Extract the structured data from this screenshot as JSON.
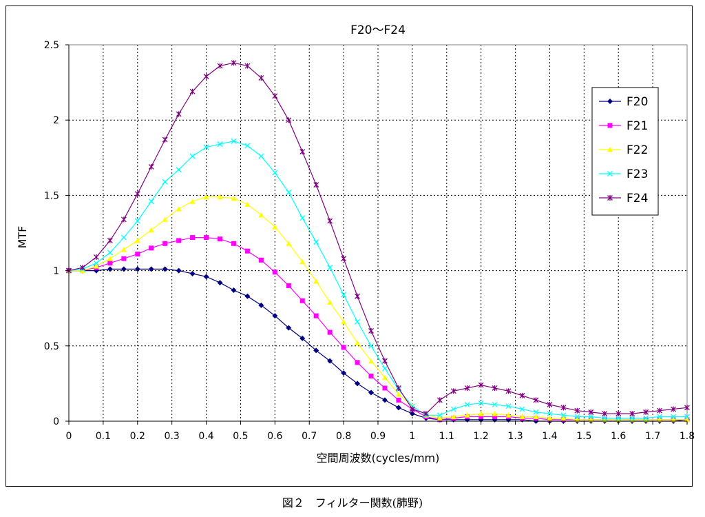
{
  "caption": "図２　フィルター関数(肺野)",
  "chart_data": {
    "type": "line",
    "title": "F20～F24",
    "xlabel": "空間周波数(cycles/mm)",
    "ylabel": "MTF",
    "xlim": [
      0,
      1.8
    ],
    "ylim": [
      0,
      2.5
    ],
    "x_ticks": [
      "0",
      "0.1",
      "0.2",
      "0.3",
      "0.4",
      "0.5",
      "0.6",
      "0.7",
      "0.8",
      "0.9",
      "1",
      "1.1",
      "1.2",
      "1.3",
      "1.4",
      "1.5",
      "1.6",
      "1.7",
      "1.8"
    ],
    "y_ticks": [
      "0",
      "0.5",
      "1",
      "1.5",
      "2",
      "2.5"
    ],
    "grid": true,
    "legend_position": "right",
    "x": [
      0,
      0.04,
      0.08,
      0.12,
      0.16,
      0.2,
      0.24,
      0.28,
      0.32,
      0.36,
      0.4,
      0.44,
      0.48,
      0.52,
      0.56,
      0.6,
      0.64,
      0.68,
      0.72,
      0.76,
      0.8,
      0.84,
      0.88,
      0.92,
      0.96,
      1.0,
      1.04,
      1.08,
      1.12,
      1.16,
      1.2,
      1.24,
      1.28,
      1.32,
      1.36,
      1.4,
      1.44,
      1.48,
      1.52,
      1.56,
      1.6,
      1.64,
      1.68,
      1.72,
      1.76,
      1.8
    ],
    "series": [
      {
        "name": "F20",
        "color": "#000080",
        "marker": "diamond",
        "values": [
          1.0,
          1.0,
          1.0,
          1.01,
          1.01,
          1.01,
          1.01,
          1.01,
          1.0,
          0.98,
          0.96,
          0.92,
          0.87,
          0.83,
          0.77,
          0.7,
          0.62,
          0.55,
          0.47,
          0.4,
          0.32,
          0.25,
          0.19,
          0.14,
          0.09,
          0.05,
          0.02,
          0.01,
          0.01,
          0.01,
          0.01,
          0.01,
          0.01,
          0.01,
          0.0,
          0.0,
          0.0,
          0.0,
          0.0,
          0.0,
          0.0,
          0.0,
          0.0,
          0.0,
          0.0,
          0.01
        ]
      },
      {
        "name": "F21",
        "color": "#ff00ff",
        "marker": "square",
        "values": [
          1.0,
          1.0,
          1.02,
          1.05,
          1.08,
          1.11,
          1.15,
          1.18,
          1.2,
          1.22,
          1.22,
          1.21,
          1.18,
          1.13,
          1.07,
          0.99,
          0.9,
          0.8,
          0.7,
          0.59,
          0.49,
          0.39,
          0.3,
          0.22,
          0.14,
          0.08,
          0.03,
          0.01,
          0.02,
          0.03,
          0.03,
          0.03,
          0.03,
          0.02,
          0.02,
          0.01,
          0.01,
          0.01,
          0.01,
          0.01,
          0.01,
          0.01,
          0.01,
          0.01,
          0.01,
          0.01
        ]
      },
      {
        "name": "F22",
        "color": "#ffff00",
        "marker": "triangle",
        "values": [
          1.0,
          1.0,
          1.03,
          1.08,
          1.14,
          1.2,
          1.27,
          1.34,
          1.41,
          1.46,
          1.49,
          1.49,
          1.48,
          1.44,
          1.37,
          1.29,
          1.18,
          1.06,
          0.93,
          0.79,
          0.66,
          0.52,
          0.4,
          0.29,
          0.18,
          0.1,
          0.04,
          0.02,
          0.03,
          0.04,
          0.05,
          0.05,
          0.04,
          0.03,
          0.03,
          0.02,
          0.02,
          0.01,
          0.01,
          0.01,
          0.01,
          0.01,
          0.01,
          0.01,
          0.01,
          0.01
        ]
      },
      {
        "name": "F23",
        "color": "#00ffff",
        "marker": "x",
        "values": [
          1.0,
          1.01,
          1.05,
          1.12,
          1.22,
          1.33,
          1.46,
          1.59,
          1.67,
          1.76,
          1.82,
          1.84,
          1.86,
          1.83,
          1.76,
          1.65,
          1.52,
          1.35,
          1.19,
          1.02,
          0.84,
          0.66,
          0.5,
          0.35,
          0.21,
          0.1,
          0.04,
          0.04,
          0.08,
          0.11,
          0.12,
          0.11,
          0.1,
          0.08,
          0.06,
          0.05,
          0.04,
          0.03,
          0.03,
          0.02,
          0.02,
          0.02,
          0.02,
          0.03,
          0.03,
          0.03
        ]
      },
      {
        "name": "F24",
        "color": "#800080",
        "marker": "star",
        "values": [
          1.0,
          1.02,
          1.09,
          1.2,
          1.34,
          1.51,
          1.69,
          1.87,
          2.04,
          2.19,
          2.29,
          2.36,
          2.38,
          2.36,
          2.28,
          2.16,
          2.0,
          1.79,
          1.57,
          1.33,
          1.08,
          0.83,
          0.6,
          0.4,
          0.22,
          0.08,
          0.05,
          0.14,
          0.2,
          0.22,
          0.24,
          0.22,
          0.2,
          0.17,
          0.14,
          0.11,
          0.09,
          0.07,
          0.06,
          0.05,
          0.05,
          0.05,
          0.06,
          0.07,
          0.08,
          0.09
        ]
      }
    ]
  }
}
